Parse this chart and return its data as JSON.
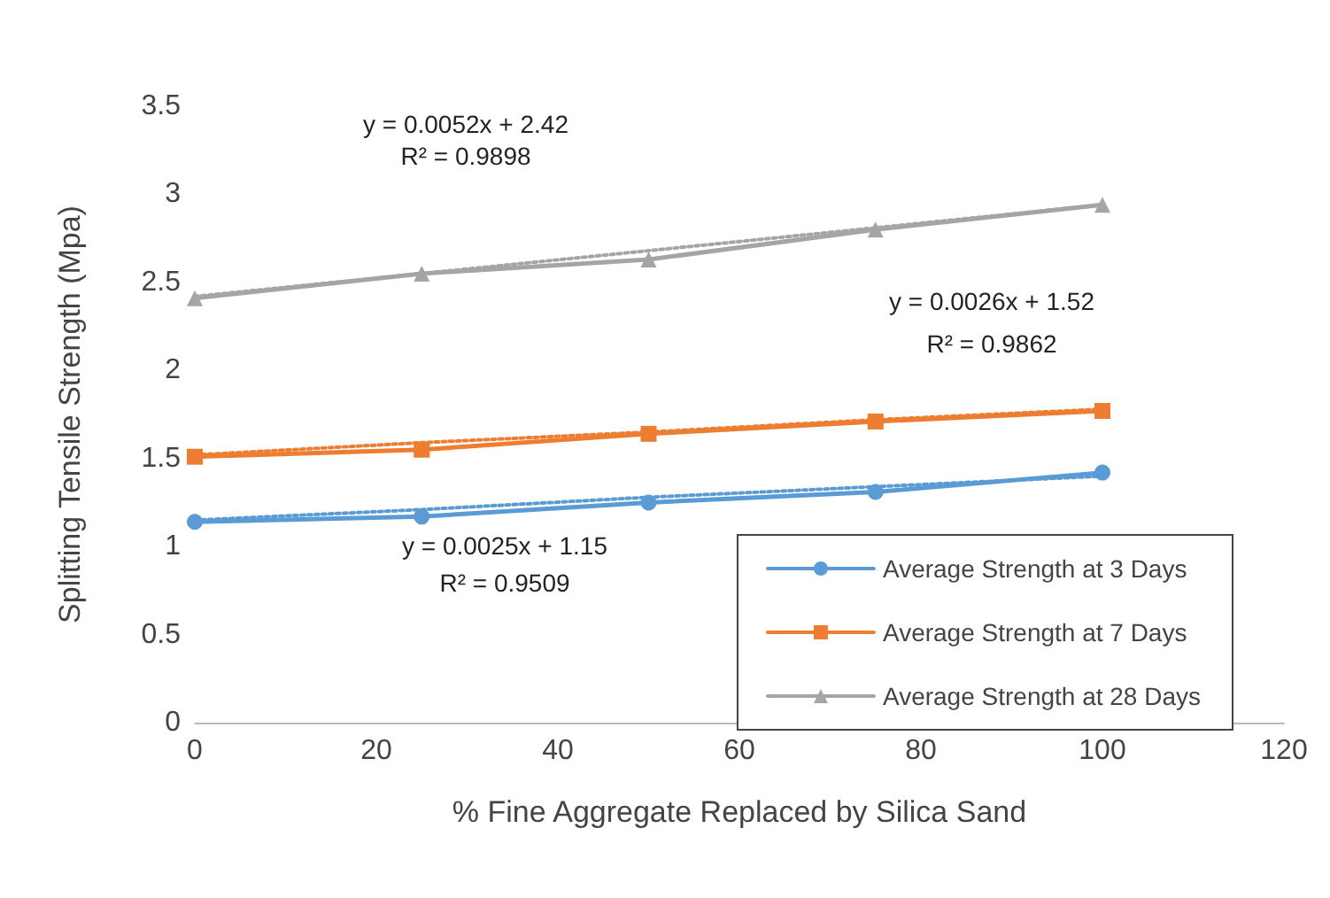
{
  "chart_data": {
    "type": "line",
    "xlabel": "% Fine Aggregate Replaced by Silica Sand",
    "ylabel": "Splitting Tensile Strength (Mpa)",
    "x": [
      0,
      25,
      50,
      75,
      100
    ],
    "series": [
      {
        "name": "Average Strength at 3 Days",
        "color": "#5b9bd5",
        "marker": "circle",
        "values": [
          1.14,
          1.17,
          1.25,
          1.31,
          1.42
        ]
      },
      {
        "name": "Average Strength at 7 Days",
        "color": "#ed7d31",
        "marker": "square",
        "values": [
          1.51,
          1.55,
          1.64,
          1.71,
          1.77
        ]
      },
      {
        "name": "Average Strength at 28 Days",
        "color": "#a5a5a5",
        "marker": "triangle",
        "values": [
          2.41,
          2.55,
          2.63,
          2.8,
          2.94
        ]
      },
      {
        "color": "#5b9bd5",
        "marker": "none",
        "line_style": "dotted",
        "values": [
          1.15,
          1.21,
          1.28,
          1.34,
          1.4
        ]
      },
      {
        "color": "#ed7d31",
        "marker": "none",
        "line_style": "dotted",
        "values": [
          1.52,
          1.59,
          1.65,
          1.72,
          1.78
        ]
      },
      {
        "color": "#a5a5a5",
        "marker": "none",
        "line_style": "dotted",
        "values": [
          2.42,
          2.55,
          2.68,
          2.81,
          2.94
        ]
      }
    ],
    "annotations": [
      "y = 0.0052x + 2.42",
      "R² = 0.9898",
      "y = 0.0026x + 1.52",
      "R² = 0.9862",
      "y = 0.0025x + 1.15",
      "R² = 0.9509"
    ],
    "xlim": [
      0,
      120
    ],
    "xticks": [
      0,
      20,
      40,
      60,
      80,
      100,
      120
    ],
    "ylim": [
      0,
      3.5
    ],
    "yticks": [
      0,
      0.5,
      1,
      1.5,
      2,
      2.5,
      3,
      3.5
    ],
    "grid": false,
    "legend": "bottom right"
  }
}
